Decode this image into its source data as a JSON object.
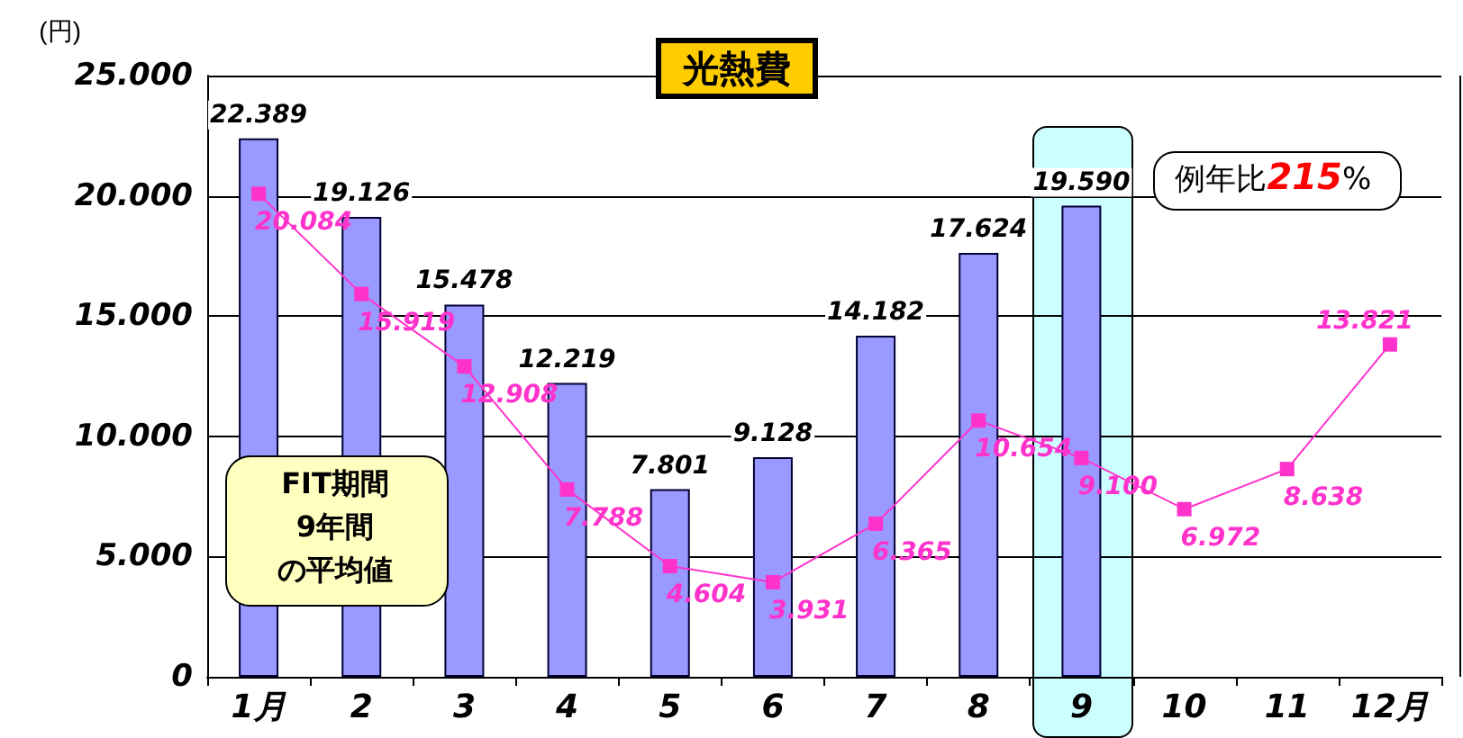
{
  "chart_data": {
    "type": "bar",
    "title": "光熱費",
    "ylabel": "(円)",
    "categories": [
      "1月",
      "2",
      "3",
      "4",
      "5",
      "6",
      "7",
      "8",
      "9",
      "10",
      "11",
      "12月"
    ],
    "series": [
      {
        "color": "#9999ff",
        "values": [
          22389,
          19126,
          15478,
          12219,
          7801,
          9128,
          14182,
          17624,
          19590,
          null,
          null,
          null
        ],
        "value_labels": [
          "22.389",
          "19.126",
          "15.478",
          "12.219",
          "7.801",
          "9.128",
          "14.182",
          "17.624",
          "19.590",
          null,
          null,
          null
        ]
      },
      {
        "type": "line",
        "color": "#ff33cc",
        "marker": "square",
        "values": [
          20084,
          15919,
          12908,
          7788,
          4604,
          3931,
          6365,
          10654,
          9100,
          6972,
          8638,
          13821
        ],
        "value_labels": [
          "20.084",
          "15.919",
          "12.908",
          "7.788",
          "4.604",
          "3.931",
          "6.365",
          "10.654",
          "9.100",
          "6.972",
          "8.638",
          "13.821"
        ]
      }
    ],
    "ylim": [
      0,
      25000
    ],
    "yticks": [
      {
        "value": 0,
        "label": "0"
      },
      {
        "value": 5000,
        "label": "5.000"
      },
      {
        "value": 10000,
        "label": "10.000"
      },
      {
        "value": 15000,
        "label": "15.000"
      },
      {
        "value": 20000,
        "label": "20.000"
      },
      {
        "value": 25000,
        "label": "25.000"
      }
    ],
    "grid": "y",
    "annotations": [
      "FIT期間9年間の平均値",
      {
        "text": "例年比215%",
        "x": "9",
        "y": 19590
      }
    ]
  }
}
